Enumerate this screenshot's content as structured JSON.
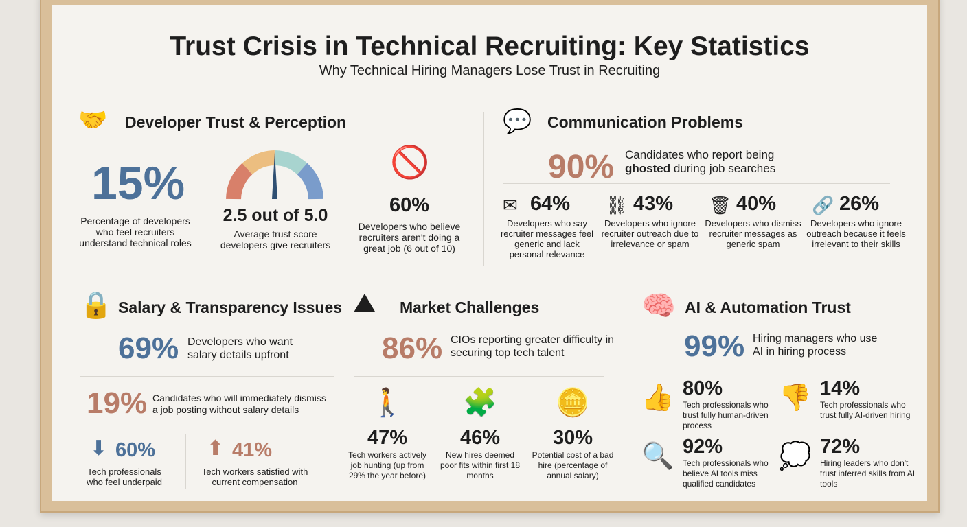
{
  "title": "Trust Crisis in Technical Recruiting: Key Statistics",
  "subtitle": "Why Technical Hiring Managers Lose Trust in Recruiting",
  "colors": {
    "blue": "#4d7199",
    "terracotta": "#b87c68",
    "frame": "#d9bf9a",
    "paper": "#f5f3ef"
  },
  "developer_trust": {
    "heading": "Developer Trust & Perception",
    "stat1": {
      "value": "15%",
      "label": "Percentage of developers who feel recruiters understand technical roles"
    },
    "gauge": {
      "value": 2.5,
      "max": 5.0,
      "text": "2.5 out of 5.0",
      "label": "Average trust score developers give recruiters"
    },
    "stat3": {
      "value": "60%",
      "label": "Developers who believe recruiters aren't doing a great job (6 out of 10)"
    }
  },
  "communication": {
    "heading": "Communication Problems",
    "main": {
      "value": "90%",
      "label_pre": "Candidates who report being",
      "label_bold": "ghosted",
      "label_post": "during job searches"
    },
    "items": [
      {
        "icon": "envelope-icon",
        "value": "64%",
        "label": "Developers who say recruiter messages feel generic and lack personal relevance"
      },
      {
        "icon": "broken-link-icon",
        "value": "43%",
        "label": "Developers who ignore recruiter outreach due to irrelevance or spam"
      },
      {
        "icon": "trash-icon",
        "value": "40%",
        "label": "Developers who dismiss recruiter messages as generic spam"
      },
      {
        "icon": "chain-link-icon",
        "value": "26%",
        "label": "Developers who ignore outreach because it feels irrelevant to their skills"
      }
    ]
  },
  "salary": {
    "heading": "Salary & Transparency Issues",
    "main": {
      "value": "69%",
      "label": "Developers who want salary details upfront"
    },
    "second": {
      "value": "19%",
      "label": "Candidates who will immediately dismiss a job posting without salary details"
    },
    "items": [
      {
        "icon": "arrow-down-icon",
        "value": "60%",
        "label": "Tech professionals who feel underpaid"
      },
      {
        "icon": "arrow-up-icon",
        "value": "41%",
        "label": "Tech workers satisfied with current compensation"
      }
    ]
  },
  "market": {
    "heading": "Market Challenges",
    "main": {
      "value": "86%",
      "label": "CIOs reporting greater difficulty in securing top tech talent"
    },
    "items": [
      {
        "icon": "job-hunter-icon",
        "value": "47%",
        "label": "Tech workers actively job hunting (up from 29% the year before)"
      },
      {
        "icon": "puzzle-icon",
        "value": "46%",
        "label": "New hires deemed poor fits within first 18 months"
      },
      {
        "icon": "coins-icon",
        "value": "30%",
        "label": "Potential cost of a bad hire (percentage of annual salary)"
      }
    ]
  },
  "ai": {
    "heading": "AI & Automation Trust",
    "main": {
      "value": "99%",
      "label": "Hiring managers who use AI in hiring process"
    },
    "items": [
      {
        "icon": "thumbs-up-icon",
        "value": "80%",
        "label": "Tech professionals who trust fully human-driven process"
      },
      {
        "icon": "thumbs-down-icon",
        "value": "14%",
        "label": "Tech professionals who trust fully AI-driven hiring"
      },
      {
        "icon": "resume-search-icon",
        "value": "92%",
        "label": "Tech professionals who believe AI tools miss qualified candidates"
      },
      {
        "icon": "thought-bubble-icon",
        "value": "72%",
        "label": "Hiring leaders who don't trust inferred skills from AI tools"
      }
    ]
  }
}
